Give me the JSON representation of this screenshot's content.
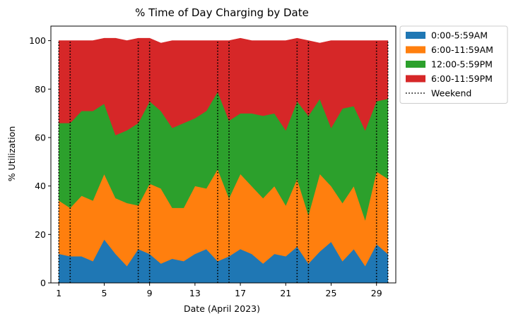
{
  "chart_data": {
    "type": "area",
    "stacked": true,
    "title": "% Time of Day Charging by Date",
    "xlabel": "Date (April 2023)",
    "ylabel": "% Utilization",
    "x": [
      1,
      2,
      3,
      4,
      5,
      6,
      7,
      8,
      9,
      10,
      11,
      12,
      13,
      14,
      15,
      16,
      17,
      18,
      19,
      20,
      21,
      22,
      23,
      24,
      25,
      26,
      27,
      28,
      29,
      30
    ],
    "xlim": [
      0.3,
      30.7
    ],
    "ylim": [
      0,
      106
    ],
    "xticks": [
      1,
      5,
      9,
      13,
      17,
      21,
      25,
      29
    ],
    "yticks": [
      0,
      20,
      40,
      60,
      80,
      100
    ],
    "series": [
      {
        "name": "0:00-5:59AM",
        "color": "#1f77b4",
        "values": [
          12,
          11,
          11,
          9,
          18,
          12,
          7,
          14,
          12,
          8,
          10,
          9,
          12,
          14,
          9,
          11,
          14,
          12,
          8,
          12,
          11,
          15,
          8,
          13,
          17,
          9,
          14,
          7,
          16,
          12
        ]
      },
      {
        "name": "6:00-11:59AM",
        "color": "#ff7f0e",
        "values": [
          22,
          20,
          25,
          25,
          27,
          23,
          26,
          18,
          29,
          31,
          21,
          22,
          28,
          25,
          38,
          24,
          31,
          28,
          27,
          28,
          21,
          28,
          20,
          32,
          23,
          24,
          26,
          19,
          30,
          31
        ]
      },
      {
        "name": "12:00-5:59PM",
        "color": "#2ca02c",
        "values": [
          32,
          35,
          35,
          37,
          29,
          26,
          30,
          34,
          34,
          32,
          33,
          35,
          28,
          32,
          32,
          32,
          25,
          30,
          34,
          30,
          31,
          32,
          41,
          31,
          24,
          39,
          33,
          37,
          29,
          33
        ]
      },
      {
        "name": "6:00-11:59PM",
        "color": "#d62728",
        "values": [
          34,
          34,
          29,
          29,
          27,
          40,
          37,
          35,
          26,
          28,
          36,
          34,
          32,
          29,
          21,
          33,
          31,
          30,
          31,
          30,
          37,
          26,
          31,
          23,
          36,
          28,
          27,
          37,
          25,
          24
        ]
      }
    ],
    "weekend_days": [
      1,
      2,
      8,
      9,
      15,
      16,
      22,
      23,
      29,
      30
    ],
    "weekend_label": "Weekend",
    "legend": "outside top-right",
    "grid": false
  }
}
